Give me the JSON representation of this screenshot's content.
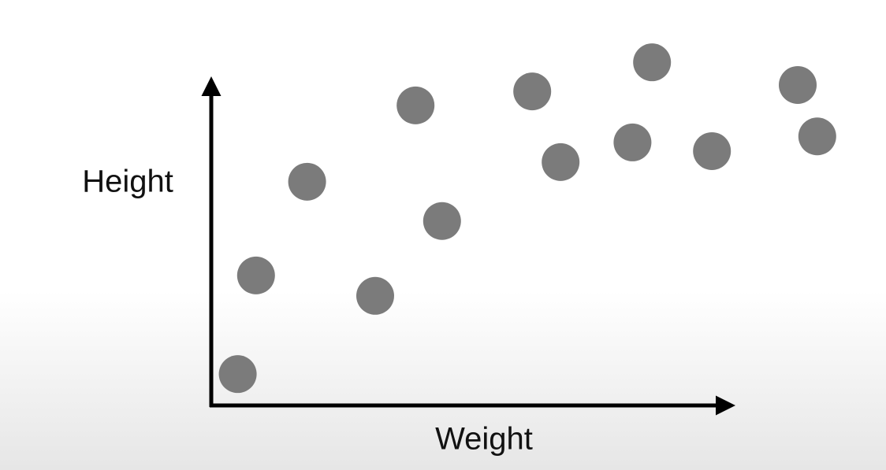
{
  "chart_data": {
    "type": "scatter",
    "x_label": "Weight",
    "y_label": "Height",
    "x": [
      4.2,
      7.1,
      15.2,
      26,
      32.4,
      36.6,
      50.9,
      55.4,
      66.8,
      69.9,
      79.4,
      93,
      96.1
    ],
    "values": [
      8.3,
      34.4,
      59.2,
      29,
      79.4,
      48.8,
      83.1,
      64.4,
      69.6,
      90.8,
      67.3,
      84.8,
      71.2
    ],
    "color": "#7b7b7b",
    "xlim": [
      0,
      100
    ],
    "ylim": [
      0,
      100
    ]
  }
}
